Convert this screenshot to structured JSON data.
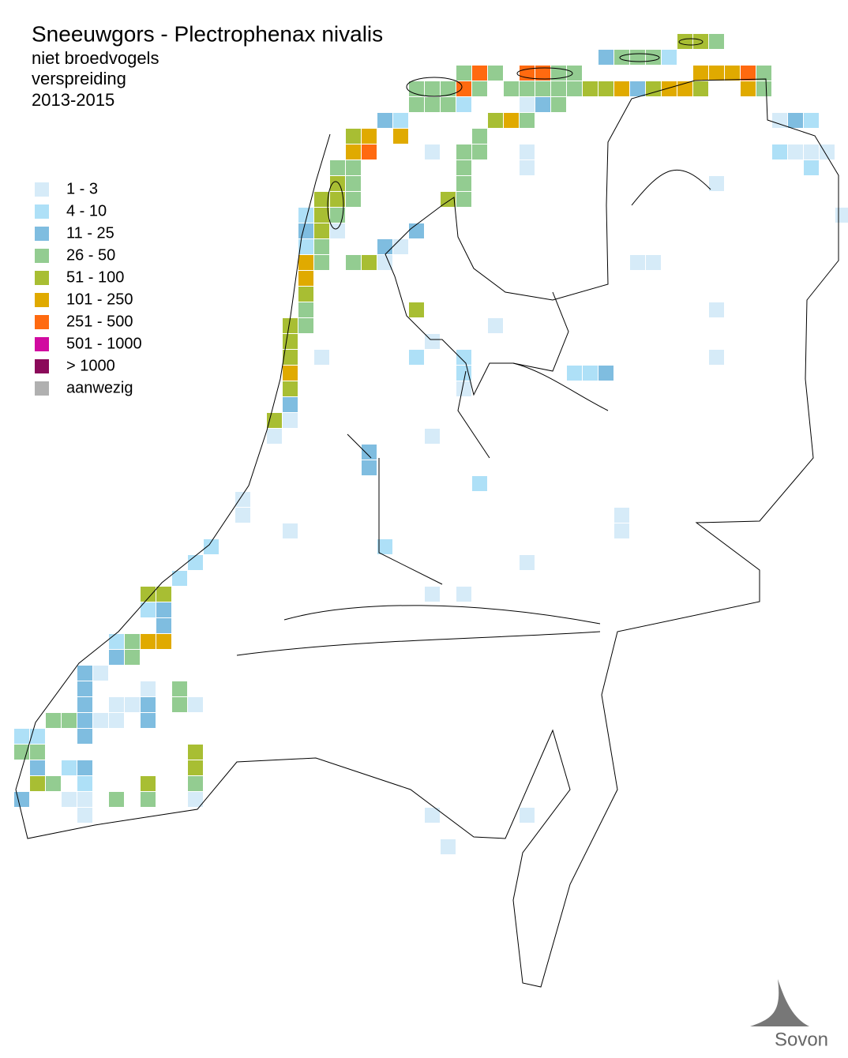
{
  "header": {
    "title": "Sneeuwgors - Plectrophenax nivalis",
    "lines": [
      "niet broedvogels",
      "verspreiding",
      "2013-2015"
    ]
  },
  "legend": [
    {
      "label": "1 - 3",
      "color": "#d6ebf8"
    },
    {
      "label": "4 - 10",
      "color": "#aee0f7"
    },
    {
      "label": "11 - 25",
      "color": "#7fbde0"
    },
    {
      "label": "26 - 50",
      "color": "#93cc91"
    },
    {
      "label": "51 - 100",
      "color": "#a8be33"
    },
    {
      "label": "101 - 250",
      "color": "#e0aa00"
    },
    {
      "label": "251 - 500",
      "color": "#ff6a10"
    },
    {
      "label": "501 - 1000",
      "color": "#d10aa0"
    },
    {
      "label": "> 1000",
      "color": "#8b0a5a"
    },
    {
      "label": "aanwezig",
      "color": "#b0b0b0"
    }
  ],
  "credit": "Sovon"
}
